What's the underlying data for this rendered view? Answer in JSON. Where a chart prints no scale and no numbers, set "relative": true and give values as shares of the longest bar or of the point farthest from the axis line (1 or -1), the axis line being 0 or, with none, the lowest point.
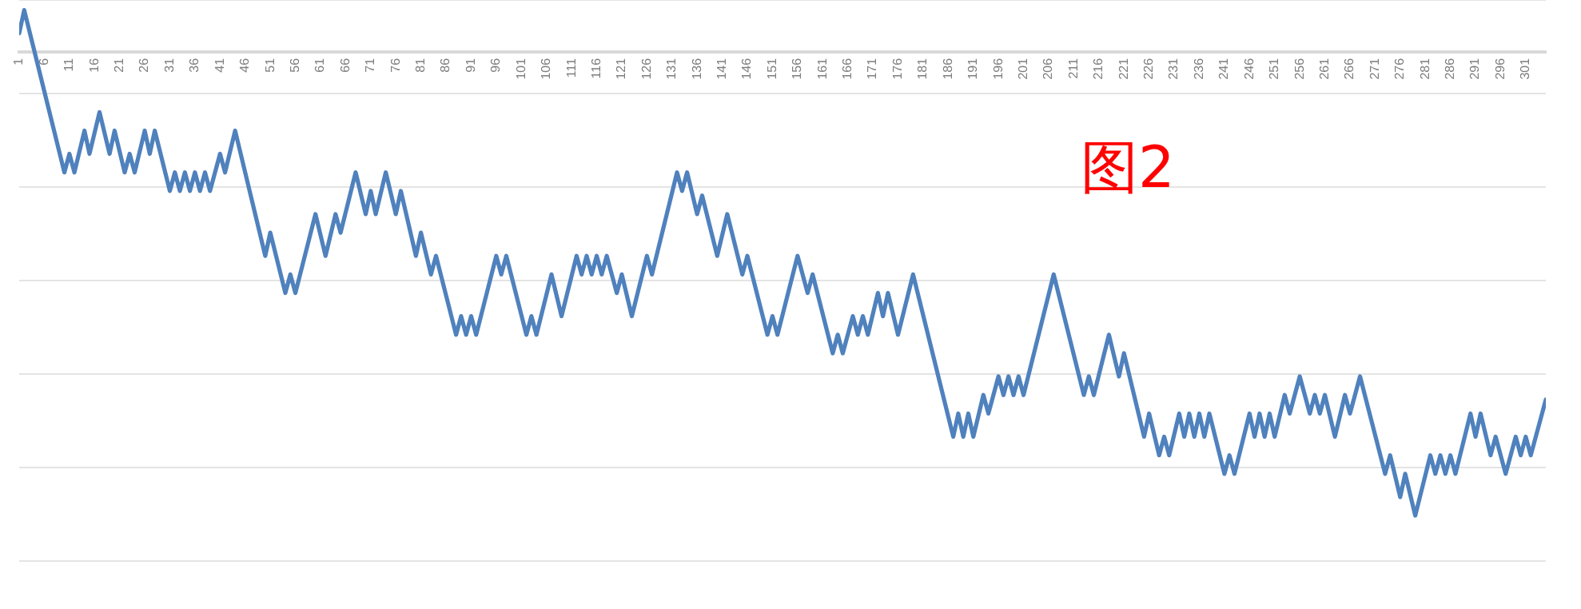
{
  "chart_data": {
    "type": "line",
    "relative": true,
    "grid": "y",
    "legend": false,
    "marker": "none",
    "line_style": "solid",
    "xlim": [
      1,
      305
    ],
    "xticks": [
      1,
      6,
      11,
      16,
      21,
      26,
      31,
      36,
      41,
      46,
      51,
      56,
      61,
      66,
      71,
      76,
      81,
      86,
      91,
      96,
      101,
      106,
      111,
      116,
      121,
      126,
      131,
      136,
      141,
      146,
      151,
      156,
      161,
      166,
      171,
      176,
      181,
      186,
      191,
      196,
      201,
      206,
      211,
      216,
      221,
      226,
      231,
      236,
      241,
      246,
      251,
      256,
      261,
      266,
      271,
      276,
      281,
      286,
      291,
      296,
      301
    ],
    "annotations": [
      "图2"
    ],
    "series": [
      {
        "color": "#4f81bd",
        "x": [
          1,
          2,
          10,
          11,
          12,
          14,
          15,
          17,
          19,
          20,
          22,
          23,
          24,
          26,
          27,
          28,
          31,
          32,
          33,
          34,
          35,
          36,
          37,
          38,
          39,
          41,
          42,
          44,
          50,
          51,
          54,
          55,
          56,
          60,
          62,
          64,
          65,
          68,
          70,
          71,
          72,
          74,
          76,
          77,
          80,
          81,
          83,
          84,
          88,
          89,
          90,
          91,
          92,
          96,
          97,
          98,
          102,
          103,
          104,
          107,
          109,
          112,
          113,
          114,
          115,
          116,
          117,
          118,
          120,
          121,
          123,
          126,
          127,
          132,
          133,
          134,
          136,
          137,
          140,
          142,
          145,
          146,
          150,
          151,
          152,
          156,
          158,
          159,
          163,
          164,
          165,
          167,
          168,
          169,
          170,
          172,
          173,
          174,
          176,
          179,
          187,
          188,
          189,
          190,
          191,
          193,
          194,
          196,
          197,
          198,
          199,
          200,
          201,
          207,
          213,
          214,
          215,
          218,
          220,
          221,
          225,
          226,
          228,
          229,
          230,
          232,
          233,
          234,
          235,
          236,
          237,
          238,
          241,
          242,
          243,
          246,
          247,
          248,
          249,
          250,
          251,
          253,
          254,
          256,
          258,
          259,
          260,
          261,
          263,
          265,
          266,
          268,
          273,
          274,
          276,
          277,
          279,
          282,
          283,
          284,
          285,
          286,
          287,
          290,
          291,
          292,
          294,
          295,
          297,
          299,
          300,
          301,
          302,
          305
        ],
        "values": [
          0.04,
          0.09,
          -0.26,
          -0.22,
          -0.26,
          -0.17,
          -0.22,
          -0.13,
          -0.22,
          -0.17,
          -0.26,
          -0.22,
          -0.26,
          -0.17,
          -0.22,
          -0.17,
          -0.3,
          -0.26,
          -0.3,
          -0.26,
          -0.3,
          -0.26,
          -0.3,
          -0.26,
          -0.3,
          -0.22,
          -0.26,
          -0.17,
          -0.44,
          -0.39,
          -0.52,
          -0.48,
          -0.52,
          -0.35,
          -0.44,
          -0.35,
          -0.39,
          -0.26,
          -0.35,
          -0.3,
          -0.35,
          -0.26,
          -0.35,
          -0.3,
          -0.44,
          -0.39,
          -0.48,
          -0.44,
          -0.61,
          -0.57,
          -0.61,
          -0.57,
          -0.61,
          -0.44,
          -0.48,
          -0.44,
          -0.61,
          -0.57,
          -0.61,
          -0.48,
          -0.57,
          -0.44,
          -0.48,
          -0.44,
          -0.48,
          -0.44,
          -0.48,
          -0.44,
          -0.52,
          -0.48,
          -0.57,
          -0.44,
          -0.48,
          -0.26,
          -0.3,
          -0.26,
          -0.35,
          -0.31,
          -0.44,
          -0.35,
          -0.48,
          -0.44,
          -0.61,
          -0.57,
          -0.61,
          -0.44,
          -0.52,
          -0.48,
          -0.65,
          -0.61,
          -0.65,
          -0.57,
          -0.61,
          -0.57,
          -0.61,
          -0.52,
          -0.57,
          -0.52,
          -0.61,
          -0.48,
          -0.83,
          -0.78,
          -0.83,
          -0.78,
          -0.83,
          -0.74,
          -0.78,
          -0.7,
          -0.74,
          -0.7,
          -0.74,
          -0.7,
          -0.74,
          -0.48,
          -0.74,
          -0.7,
          -0.74,
          -0.61,
          -0.7,
          -0.65,
          -0.83,
          -0.78,
          -0.87,
          -0.83,
          -0.87,
          -0.78,
          -0.83,
          -0.78,
          -0.83,
          -0.78,
          -0.83,
          -0.78,
          -0.91,
          -0.87,
          -0.91,
          -0.78,
          -0.83,
          -0.78,
          -0.83,
          -0.78,
          -0.83,
          -0.74,
          -0.78,
          -0.7,
          -0.78,
          -0.74,
          -0.78,
          -0.74,
          -0.83,
          -0.74,
          -0.78,
          -0.7,
          -0.91,
          -0.87,
          -0.96,
          -0.91,
          -1,
          -0.87,
          -0.91,
          -0.87,
          -0.91,
          -0.87,
          -0.91,
          -0.78,
          -0.83,
          -0.78,
          -0.87,
          -0.83,
          -0.91,
          -0.83,
          -0.87,
          -0.83,
          -0.87,
          -0.75
        ]
      }
    ]
  }
}
